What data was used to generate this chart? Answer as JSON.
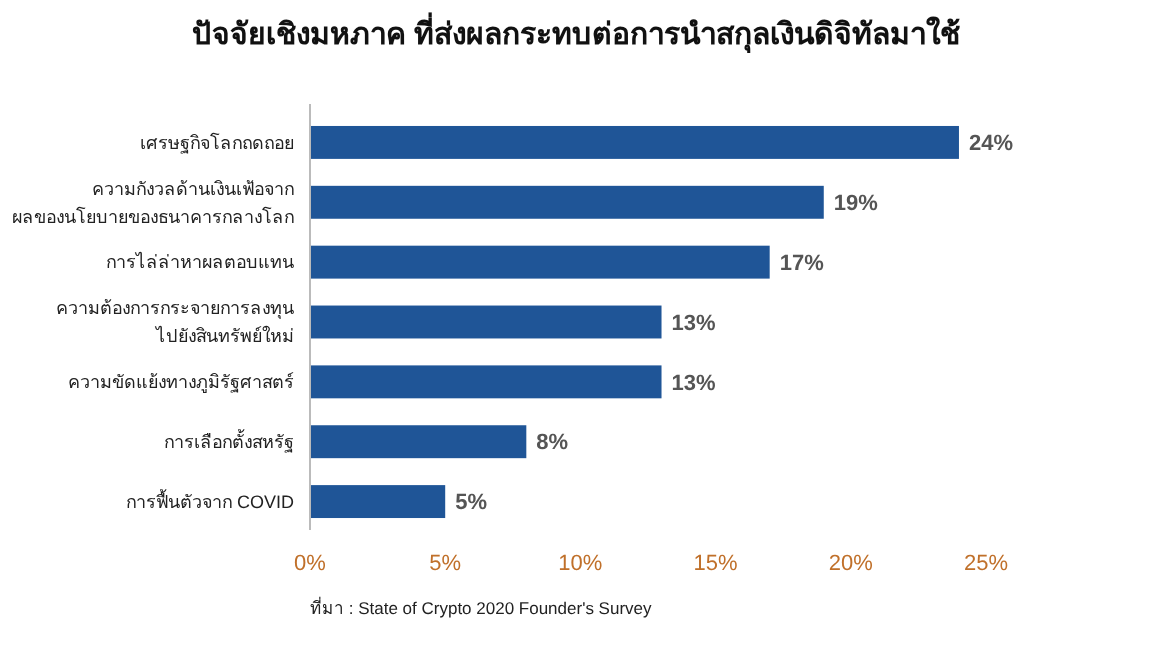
{
  "chart_data": {
    "type": "bar",
    "orientation": "horizontal",
    "title": "ปัจจัยเชิงมหภาค ที่ส่งผลกระทบต่อการนำสกุลเงินดิจิทัลมาใช้",
    "categories": [
      "เศรษฐกิจโลกถดถอย",
      "ความกังวลด้านเงินเฟ้อจาก\nผลของนโยบายของธนาคารกลางโลก",
      "การไล่ล่าหาผลตอบแทน",
      "ความต้องการกระจายการลงทุน\nไปยังสินทรัพย์ใหม่",
      "ความขัดแย้งทางภูมิรัฐศาสตร์",
      "การเลือกตั้งสหรัฐ",
      "การฟื้นตัวจาก COVID"
    ],
    "values": [
      24,
      19,
      17,
      13,
      13,
      8,
      5
    ],
    "value_labels": [
      "24%",
      "19%",
      "17%",
      "13%",
      "13%",
      "8%",
      "5%"
    ],
    "color": "#1f5597",
    "xlim": [
      0,
      25
    ],
    "xticks": [
      {
        "value": 0,
        "label": "0%"
      },
      {
        "value": 5,
        "label": "5%"
      },
      {
        "value": 10,
        "label": "10%"
      },
      {
        "value": 15,
        "label": "15%"
      },
      {
        "value": 20,
        "label": "20%"
      },
      {
        "value": 25,
        "label": "25%"
      }
    ],
    "grid": false,
    "annotations": [
      "ที่มา : State of Crypto 2020 Founder's Survey"
    ]
  }
}
